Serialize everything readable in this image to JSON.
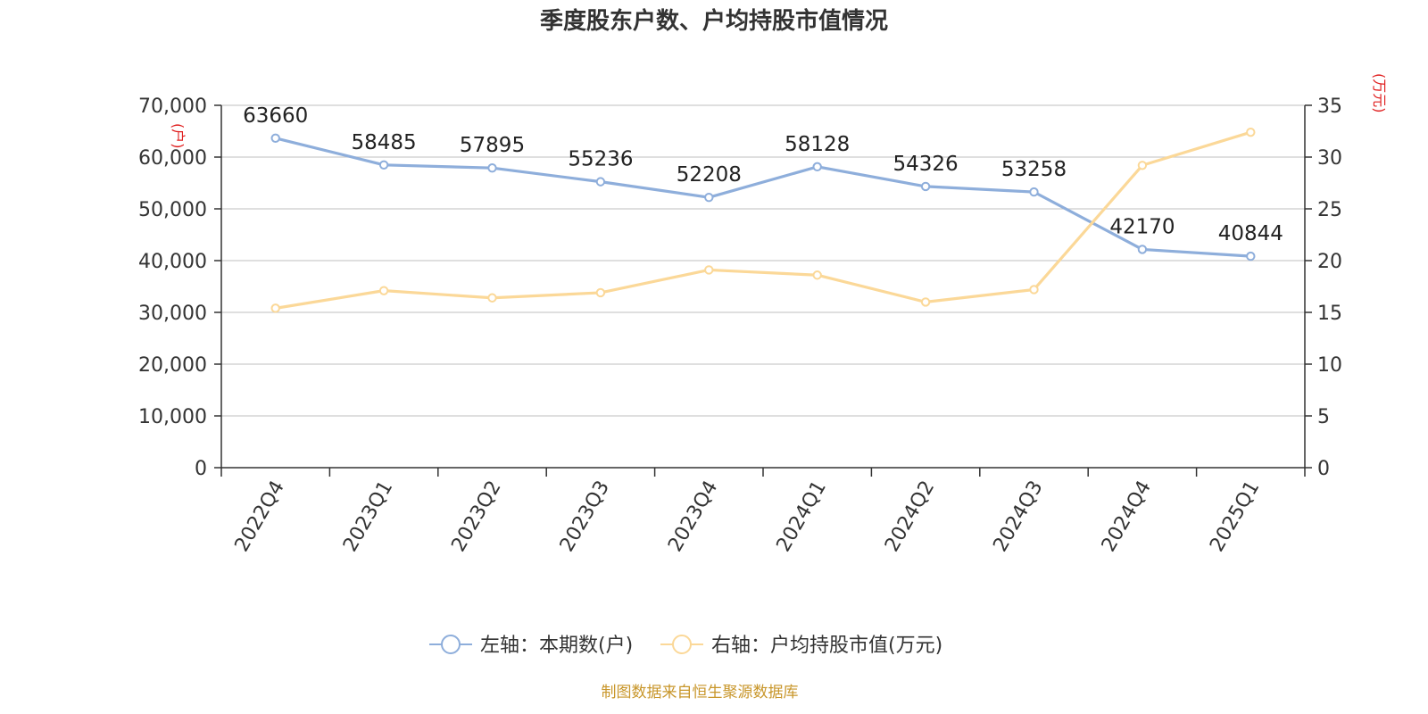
{
  "chart_data": {
    "type": "line",
    "title": "季度股东户数、户均持股市值情况",
    "categories": [
      "2022Q4",
      "2023Q1",
      "2023Q2",
      "2023Q3",
      "2023Q4",
      "2024Q1",
      "2024Q2",
      "2024Q3",
      "2024Q4",
      "2025Q1"
    ],
    "left_axis": {
      "unit": "(户)",
      "ylim": [
        0,
        70000
      ],
      "ticks": [
        "0",
        "10,000",
        "20,000",
        "30,000",
        "40,000",
        "50,000",
        "60,000",
        "70,000"
      ]
    },
    "right_axis": {
      "unit": "(万元)",
      "ylim": [
        0,
        35
      ],
      "ticks": [
        "0",
        "5",
        "10",
        "15",
        "20",
        "25",
        "30",
        "35"
      ]
    },
    "series": [
      {
        "name": "左轴：本期数(户)",
        "axis": "left",
        "color": "#8eaedb",
        "values": [
          63660,
          58485,
          57895,
          55236,
          52208,
          58128,
          54326,
          53258,
          42170,
          40844
        ],
        "labels": [
          "63660",
          "58485",
          "57895",
          "55236",
          "52208",
          "58128",
          "54326",
          "53258",
          "42170",
          "40844"
        ]
      },
      {
        "name": "右轴：户均持股市值(万元)",
        "axis": "right",
        "color": "#fbd898",
        "values": [
          15.4,
          17.1,
          16.4,
          16.9,
          19.1,
          18.6,
          16.0,
          17.2,
          29.2,
          32.4
        ]
      }
    ],
    "grid": true,
    "legend": "bottom-center"
  },
  "source": "制图数据来自恒生聚源数据库"
}
